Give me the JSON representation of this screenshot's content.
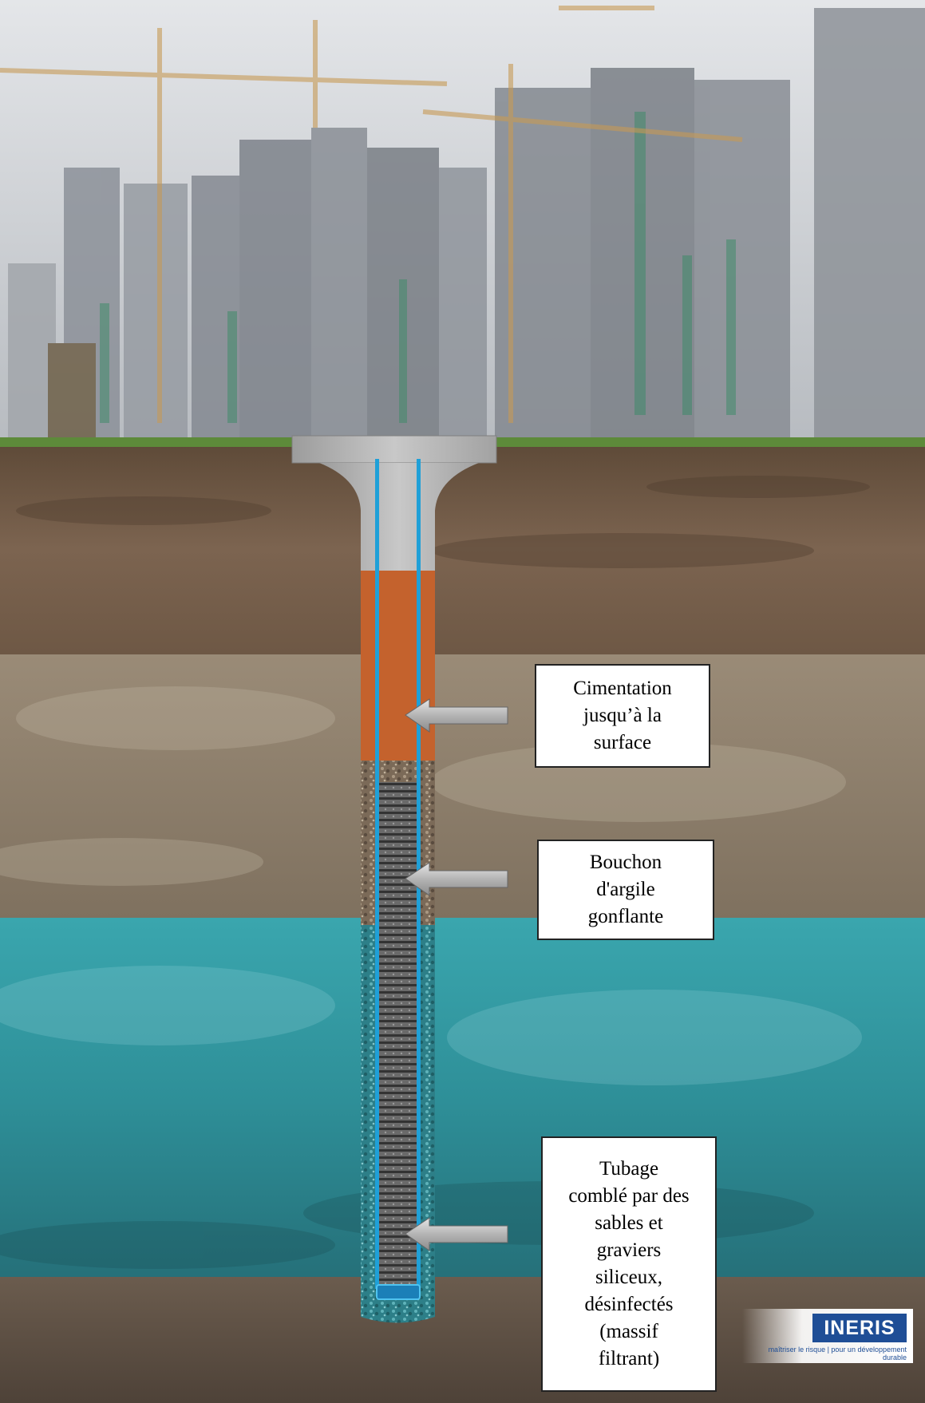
{
  "labels": {
    "cementation": [
      "Cimentation",
      "jusqu’à la",
      "surface"
    ],
    "bouchon": [
      "Bouchon",
      "d'argile",
      "gonflante"
    ],
    "tubage": [
      "Tubage",
      "comblé par des",
      "sables et",
      "graviers",
      "siliceux,",
      "désinfectés",
      "(massif",
      "filtrant)"
    ]
  },
  "logo": {
    "name": "INERIS",
    "tagline": "maîtriser le risque | pour un développement durable"
  },
  "colors": {
    "sky": "#c9ccd1",
    "grass": "#5d8a3a",
    "topsoil": "#6e5845",
    "gravel_soil": "#8a7b69",
    "aquifer": "#2f8f98",
    "cement": "#b0b0b0",
    "cement_fill": "#c4622d",
    "clay_plug": "#7b6a58",
    "casing": "#1fa0d8",
    "arrow": "#b8b8b8",
    "logo_blue": "#1f4e96"
  }
}
